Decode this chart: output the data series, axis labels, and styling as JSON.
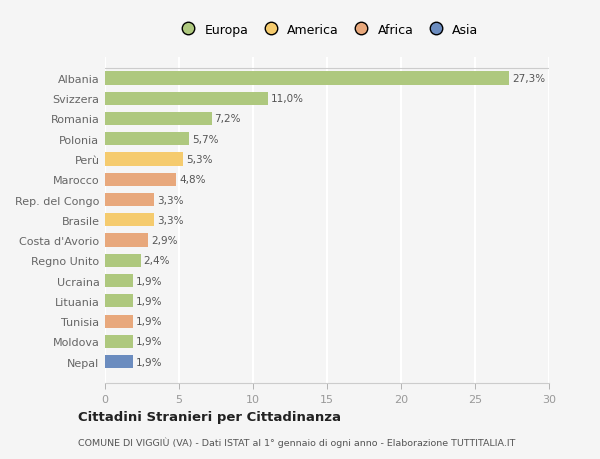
{
  "categories": [
    "Albania",
    "Svizzera",
    "Romania",
    "Polonia",
    "Perù",
    "Marocco",
    "Rep. del Congo",
    "Brasile",
    "Costa d'Avorio",
    "Regno Unito",
    "Ucraina",
    "Lituania",
    "Tunisia",
    "Moldova",
    "Nepal"
  ],
  "values": [
    27.3,
    11.0,
    7.2,
    5.7,
    5.3,
    4.8,
    3.3,
    3.3,
    2.9,
    2.4,
    1.9,
    1.9,
    1.9,
    1.9,
    1.9
  ],
  "labels": [
    "27,3%",
    "11,0%",
    "7,2%",
    "5,7%",
    "5,3%",
    "4,8%",
    "3,3%",
    "3,3%",
    "2,9%",
    "2,4%",
    "1,9%",
    "1,9%",
    "1,9%",
    "1,9%",
    "1,9%"
  ],
  "colors": [
    "#aec87e",
    "#aec87e",
    "#aec87e",
    "#aec87e",
    "#f5cb6e",
    "#e8a87c",
    "#e8a87c",
    "#f5cb6e",
    "#e8a87c",
    "#aec87e",
    "#aec87e",
    "#aec87e",
    "#e8a87c",
    "#aec87e",
    "#6b8cbf"
  ],
  "legend_labels": [
    "Europa",
    "America",
    "Africa",
    "Asia"
  ],
  "legend_colors": [
    "#aec87e",
    "#f5cb6e",
    "#e8a87c",
    "#6b8cbf"
  ],
  "title": "Cittadini Stranieri per Cittadinanza",
  "subtitle": "COMUNE DI VIGGIÙ (VA) - Dati ISTAT al 1° gennaio di ogni anno - Elaborazione TUTTITALIA.IT",
  "xlim": [
    0,
    30
  ],
  "xticks": [
    0,
    5,
    10,
    15,
    20,
    25,
    30
  ],
  "background_color": "#f5f5f5",
  "grid_color": "#ffffff",
  "bar_height": 0.65
}
